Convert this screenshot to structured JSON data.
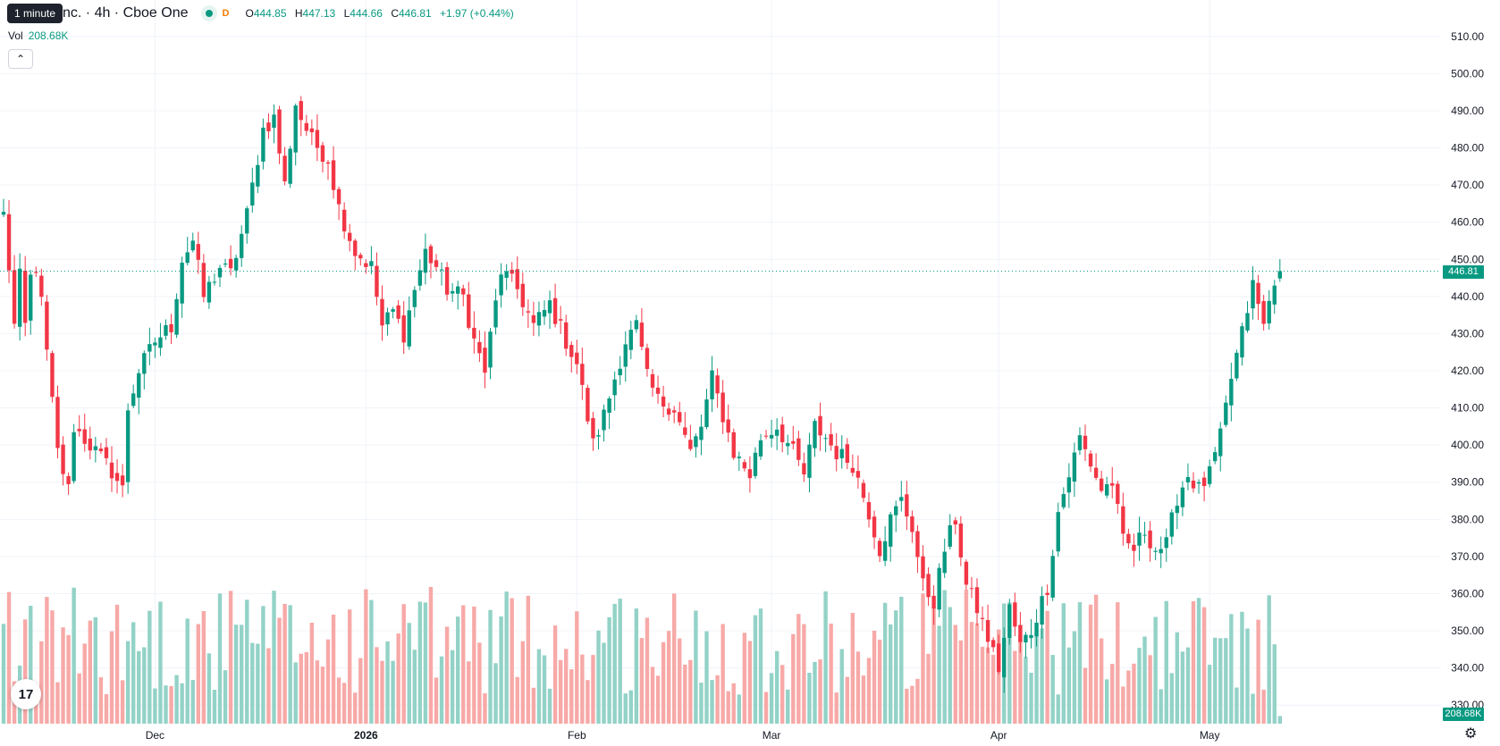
{
  "header": {
    "symbol_title": "nc. · 4h · Cboe One",
    "tooltip": "1 minute",
    "d_badge": "D",
    "ohlc": {
      "open_key": "O",
      "open": "444.85",
      "high_key": "H",
      "high": "447.13",
      "low_key": "L",
      "low": "444.66",
      "close_key": "C",
      "close": "446.81",
      "change": "+1.97 (+0.44%)"
    },
    "volume_label": "Vol",
    "volume_value": "208.68K",
    "collapse_icon": "chevron-up-icon"
  },
  "price_axis": {
    "last_price_label": "446.81",
    "last_volume_label": "208.68K"
  },
  "colors": {
    "up": "#089981",
    "down": "#f23645",
    "up_volume": "#93d2c7",
    "down_volume": "#f7a9a7",
    "grid": "#f0f3fa",
    "last_price_line": "#089981"
  },
  "icons": {
    "logo": "tradingview-logo-icon",
    "settings": "gear-icon"
  },
  "chart_data": {
    "type": "candlestick",
    "interval": "4h",
    "ylim": [
      325,
      515
    ],
    "yticks": [
      "510.00",
      "500.00",
      "490.00",
      "480.00",
      "470.00",
      "460.00",
      "450.00",
      "440.00",
      "430.00",
      "420.00",
      "410.00",
      "400.00",
      "390.00",
      "380.00",
      "370.00",
      "360.00",
      "350.00",
      "340.00",
      "330.00"
    ],
    "xticks": [
      {
        "label": "Dec",
        "bar": 28
      },
      {
        "label": "2026",
        "bar": 67
      },
      {
        "label": "Feb",
        "bar": 106
      },
      {
        "label": "Mar",
        "bar": 142
      },
      {
        "label": "Apr",
        "bar": 184
      },
      {
        "label": "May",
        "bar": 223
      }
    ],
    "last_price": 446.81,
    "volume_max": 450,
    "anchors": [
      [
        0,
        462
      ],
      [
        1,
        448
      ],
      [
        2,
        432
      ],
      [
        3,
        445
      ],
      [
        4,
        432
      ],
      [
        5,
        445
      ],
      [
        6,
        448
      ],
      [
        7,
        438
      ],
      [
        10,
        398
      ],
      [
        12,
        388
      ],
      [
        13,
        405
      ],
      [
        16,
        400
      ],
      [
        20,
        393
      ],
      [
        22,
        388
      ],
      [
        23,
        410
      ],
      [
        25,
        420
      ],
      [
        28,
        428
      ],
      [
        31,
        432
      ],
      [
        33,
        450
      ],
      [
        35,
        455
      ],
      [
        37,
        440
      ],
      [
        40,
        448
      ],
      [
        42,
        446
      ],
      [
        45,
        462
      ],
      [
        48,
        485
      ],
      [
        50,
        488
      ],
      [
        52,
        470
      ],
      [
        54,
        492
      ],
      [
        55,
        488
      ],
      [
        57,
        482
      ],
      [
        60,
        477
      ],
      [
        62,
        464
      ],
      [
        65,
        452
      ],
      [
        68,
        448
      ],
      [
        70,
        432
      ],
      [
        72,
        436
      ],
      [
        74,
        430
      ],
      [
        76,
        442
      ],
      [
        78,
        452
      ],
      [
        80,
        448
      ],
      [
        82,
        442
      ],
      [
        85,
        440
      ],
      [
        87,
        428
      ],
      [
        89,
        420
      ],
      [
        92,
        447
      ],
      [
        95,
        442
      ],
      [
        98,
        432
      ],
      [
        101,
        438
      ],
      [
        104,
        428
      ],
      [
        106,
        422
      ],
      [
        109,
        400
      ],
      [
        111,
        408
      ],
      [
        113,
        418
      ],
      [
        115,
        428
      ],
      [
        117,
        432
      ],
      [
        119,
        418
      ],
      [
        121,
        412
      ],
      [
        124,
        410
      ],
      [
        127,
        398
      ],
      [
        129,
        405
      ],
      [
        131,
        418
      ],
      [
        133,
        408
      ],
      [
        135,
        398
      ],
      [
        138,
        392
      ],
      [
        140,
        402
      ],
      [
        143,
        405
      ],
      [
        146,
        398
      ],
      [
        148,
        392
      ],
      [
        150,
        405
      ],
      [
        152,
        402
      ],
      [
        154,
        398
      ],
      [
        157,
        395
      ],
      [
        160,
        382
      ],
      [
        162,
        372
      ],
      [
        164,
        380
      ],
      [
        166,
        385
      ],
      [
        168,
        378
      ],
      [
        170,
        362
      ],
      [
        172,
        358
      ],
      [
        174,
        372
      ],
      [
        176,
        380
      ],
      [
        178,
        362
      ],
      [
        180,
        356
      ],
      [
        182,
        348
      ],
      [
        184,
        340
      ],
      [
        186,
        356
      ],
      [
        188,
        346
      ],
      [
        190,
        350
      ],
      [
        193,
        362
      ],
      [
        195,
        382
      ],
      [
        197,
        392
      ],
      [
        199,
        402
      ],
      [
        201,
        395
      ],
      [
        203,
        388
      ],
      [
        205,
        390
      ],
      [
        207,
        374
      ],
      [
        209,
        372
      ],
      [
        211,
        377
      ],
      [
        213,
        372
      ],
      [
        215,
        373
      ],
      [
        217,
        386
      ],
      [
        219,
        392
      ],
      [
        221,
        388
      ],
      [
        223,
        392
      ],
      [
        225,
        402
      ],
      [
        227,
        418
      ],
      [
        229,
        430
      ],
      [
        231,
        443
      ],
      [
        233,
        432
      ],
      [
        235,
        445
      ],
      [
        236,
        446.81
      ]
    ],
    "volume_avg": 220
  }
}
